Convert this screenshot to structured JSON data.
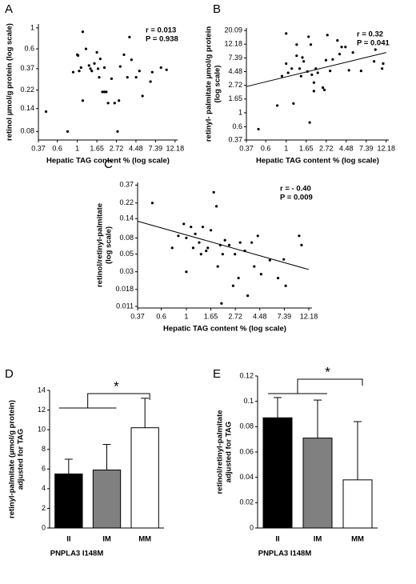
{
  "chart_data": [
    {
      "type": "scatter",
      "panel_label": "A",
      "x_label": "Hepatic TAG content % (log scale)",
      "y_label": [
        "retinol µmol/g protein (log scale)"
      ],
      "log_x": true,
      "log_y": true,
      "xlim": [
        0.37,
        13
      ],
      "ylim": [
        0.065,
        1.1
      ],
      "xticks": [
        0.37,
        0.6,
        1,
        1.65,
        2.72,
        4.48,
        7.39,
        12.18
      ],
      "yticks": [
        0.08,
        0.14,
        0.22,
        0.37,
        0.6,
        1
      ],
      "annotations": [
        "r = 0.013",
        "P = 0.938"
      ],
      "color": "#000",
      "x": [
        0.45,
        0.78,
        0.9,
        1.0,
        1.02,
        1.05,
        1.1,
        1.15,
        1.15,
        1.25,
        1.35,
        1.4,
        1.45,
        1.55,
        1.65,
        1.7,
        1.75,
        1.8,
        1.9,
        2.0,
        2.1,
        2.0,
        2.2,
        2.4,
        2.6,
        2.8,
        2.9,
        3.0,
        3.3,
        3.6,
        3.8,
        4.0,
        4.5,
        4.9,
        5.3,
        6.5,
        6.8,
        8.5,
        9.8
      ],
      "y": [
        0.13,
        0.08,
        0.34,
        0.52,
        0.51,
        0.35,
        0.38,
        0.91,
        0.17,
        0.6,
        0.4,
        0.37,
        0.35,
        0.42,
        0.55,
        0.37,
        0.3,
        0.47,
        0.21,
        0.21,
        0.21,
        0.38,
        0.16,
        0.29,
        0.16,
        0.08,
        0.17,
        0.39,
        0.52,
        0.3,
        0.8,
        0.46,
        0.3,
        0.35,
        0.19,
        0.27,
        0.34,
        0.38,
        0.36
      ]
    },
    {
      "type": "scatter",
      "panel_label": "B",
      "x_label": "Hepatic TAG content % (log scale)",
      "y_label": [
        "retinyl- palmitate µmol/g protein",
        "(log scale)"
      ],
      "log_x": true,
      "log_y": true,
      "xlim": [
        0.37,
        13
      ],
      "ylim": [
        0.37,
        22
      ],
      "xticks": [
        0.37,
        0.6,
        1,
        1.65,
        2.72,
        4.48,
        7.39,
        12.18
      ],
      "yticks": [
        0.37,
        0.6,
        1,
        1.65,
        2.72,
        4.48,
        7.39,
        12.18,
        20.09
      ],
      "annotations": [
        "r = 0.32",
        "P = 0.041"
      ],
      "color": "#000",
      "fit_line": {
        "x": [
          0.37,
          12.18
        ],
        "y": [
          2.6,
          9
        ]
      },
      "x": [
        0.5,
        0.8,
        0.9,
        1.0,
        1.0,
        1.05,
        1.15,
        1.2,
        1.3,
        1.3,
        1.4,
        1.45,
        1.5,
        1.55,
        1.7,
        1.75,
        1.8,
        1.85,
        1.9,
        2.0,
        2.0,
        2.1,
        2.2,
        2.5,
        2.6,
        2.7,
        2.8,
        3.0,
        3.2,
        3.6,
        3.8,
        4.0,
        4.4,
        4.8,
        5.3,
        6.5,
        9,
        9.3,
        11,
        11.3
      ],
      "y": [
        0.55,
        1.3,
        3.8,
        6,
        18,
        4.3,
        5,
        1.4,
        8,
        12,
        5,
        3.8,
        7.5,
        6.5,
        4.5,
        16,
        0.7,
        12,
        4,
        2.2,
        3,
        5,
        4.3,
        2.5,
        2.3,
        6.8,
        17,
        4.6,
        7,
        14,
        8.5,
        11,
        11,
        4.7,
        9,
        4.6,
        6.5,
        10,
        5,
        6
      ]
    },
    {
      "type": "scatter",
      "panel_label": "C",
      "x_label": "Hepatic TAG content % (log scale)",
      "y_label": [
        "retinol/retinyl-palmitate",
        "(log scale)"
      ],
      "log_x": true,
      "log_y": true,
      "xlim": [
        0.37,
        13
      ],
      "ylim": [
        0.0105,
        0.4
      ],
      "xticks": [
        0.37,
        0.6,
        1,
        1.65,
        2.72,
        4.48,
        7.39,
        12.18
      ],
      "yticks": [
        0.011,
        0.018,
        0.03,
        0.05,
        0.08,
        0.14,
        0.22,
        0.37
      ],
      "annotations": [
        "r = - 0.40",
        "P = 0.009"
      ],
      "color": "#000",
      "fit_line": {
        "x": [
          0.37,
          12.18
        ],
        "y": [
          0.13,
          0.032
        ]
      },
      "x": [
        0.5,
        0.75,
        0.85,
        0.95,
        1.0,
        1.0,
        1.1,
        1.15,
        1.2,
        1.3,
        1.35,
        1.4,
        1.5,
        1.55,
        1.65,
        1.75,
        1.85,
        1.9,
        2.0,
        2.05,
        2.1,
        2.2,
        2.4,
        2.6,
        2.7,
        2.9,
        3.0,
        3.3,
        3.5,
        3.8,
        4.0,
        4.3,
        4.6,
        5.5,
        6.5,
        7.3,
        7.6,
        10,
        10.5
      ],
      "y": [
        0.22,
        0.06,
        0.085,
        0.12,
        0.03,
        0.08,
        0.11,
        0.06,
        0.09,
        0.07,
        0.05,
        0.11,
        0.055,
        0.06,
        0.1,
        0.3,
        0.2,
        0.035,
        0.065,
        0.012,
        0.05,
        0.075,
        0.065,
        0.02,
        0.05,
        0.025,
        0.07,
        0.055,
        0.015,
        0.07,
        0.035,
        0.085,
        0.028,
        0.042,
        0.025,
        0.043,
        0.02,
        0.085,
        0.065
      ]
    },
    {
      "type": "bar",
      "panel_label": "D",
      "x_label": "PNPLA3 I148M",
      "y_label": [
        "retinyl-palmitate (µmol/g protein)",
        "adjusted for TAG"
      ],
      "categories": [
        "II",
        "IM",
        "MM"
      ],
      "values": [
        5.5,
        5.9,
        10.2
      ],
      "errors": [
        1.5,
        2.6,
        3.0
      ],
      "colors": [
        "#000000",
        "#808080",
        "#ffffff"
      ],
      "ylim": [
        0,
        14
      ],
      "yticks": [
        0,
        2,
        4,
        6,
        8,
        10,
        12,
        14
      ],
      "significance": "*"
    },
    {
      "type": "bar",
      "panel_label": "E",
      "x_label": "PNPLA3 I148M",
      "y_label": [
        "retinol/retinyl-palmitate",
        "adjusted for TAG"
      ],
      "categories": [
        "II",
        "IM",
        "MM"
      ],
      "values": [
        0.087,
        0.071,
        0.038
      ],
      "errors": [
        0.016,
        0.03,
        0.046
      ],
      "colors": [
        "#000000",
        "#808080",
        "#ffffff"
      ],
      "ylim": [
        0,
        0.12
      ],
      "yticks": [
        0,
        0.02,
        0.04,
        0.06,
        0.08,
        0.1,
        0.12
      ],
      "significance": "*"
    }
  ]
}
